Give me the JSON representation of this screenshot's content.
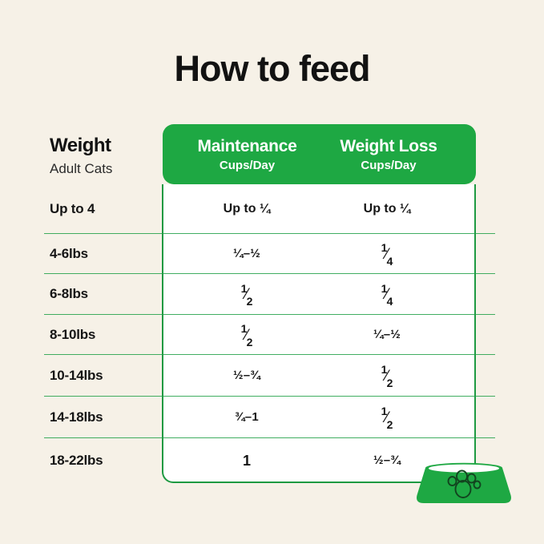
{
  "page": {
    "background_color": "#F6F1E7",
    "accent_green": "#1EA843",
    "border_green": "#1E9A42",
    "text_color": "#151515",
    "icon": "pet-bowl-paw-icon"
  },
  "title": "How to feed",
  "table": {
    "weight_header": {
      "title": "Weight",
      "subtitle": "Adult Cats"
    },
    "columns": [
      {
        "label": "Maintenance",
        "sublabel": "Cups/Day"
      },
      {
        "label": "Weight Loss",
        "sublabel": "Cups/Day"
      }
    ],
    "rows": [
      {
        "weight": "Up to 4",
        "maintenance": "Up to ¼",
        "weight_loss": "Up to ¼"
      },
      {
        "weight": "4-6lbs",
        "maintenance": "¼–½",
        "weight_loss": "¼"
      },
      {
        "weight": "6-8lbs",
        "maintenance": "½",
        "weight_loss": "¼"
      },
      {
        "weight": "8-10lbs",
        "maintenance": "½",
        "weight_loss": "¼–½"
      },
      {
        "weight": "10-14lbs",
        "maintenance": "½–¾",
        "weight_loss": "½"
      },
      {
        "weight": "14-18lbs",
        "maintenance": "¾–1",
        "weight_loss": "½"
      },
      {
        "weight": "18-22lbs",
        "maintenance": "1",
        "weight_loss": "½–¾"
      }
    ]
  },
  "chart_data": {
    "type": "table",
    "title": "How to feed",
    "columns": [
      "Weight (Adult Cats)",
      "Maintenance Cups/Day",
      "Weight Loss Cups/Day"
    ],
    "rows": [
      [
        "Up to 4",
        "Up to ¼",
        "Up to ¼"
      ],
      [
        "4-6lbs",
        "¼–½",
        "¼"
      ],
      [
        "6-8lbs",
        "½",
        "¼"
      ],
      [
        "8-10lbs",
        "½",
        "¼–½"
      ],
      [
        "10-14lbs",
        "½–¾",
        "½"
      ],
      [
        "14-18lbs",
        "¾–1",
        "½"
      ],
      [
        "18-22lbs",
        "1",
        "½–¾"
      ]
    ]
  }
}
